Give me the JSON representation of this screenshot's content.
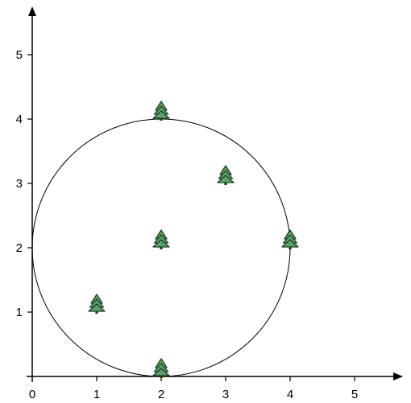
{
  "chart_data": {
    "type": "scatter",
    "title": "",
    "xlabel": "",
    "ylabel": "",
    "xlim": [
      0,
      5.75
    ],
    "ylim": [
      0,
      5.75
    ],
    "x_ticks": [
      "0",
      "1",
      "2",
      "3",
      "4",
      "5"
    ],
    "y_ticks": [
      "1",
      "2",
      "3",
      "4",
      "5"
    ],
    "marker": "tree-icon",
    "points": [
      {
        "x": 1,
        "y": 1
      },
      {
        "x": 2,
        "y": 0
      },
      {
        "x": 2,
        "y": 2
      },
      {
        "x": 2,
        "y": 4
      },
      {
        "x": 3,
        "y": 3
      },
      {
        "x": 4,
        "y": 2
      }
    ],
    "circle": {
      "cx": 2,
      "cy": 2,
      "r": 2
    },
    "colors": {
      "tree_fill": "#5ba468",
      "tree_stroke": "#1f3d24",
      "trunk": "#3b2a1e",
      "line": "#000000"
    }
  }
}
